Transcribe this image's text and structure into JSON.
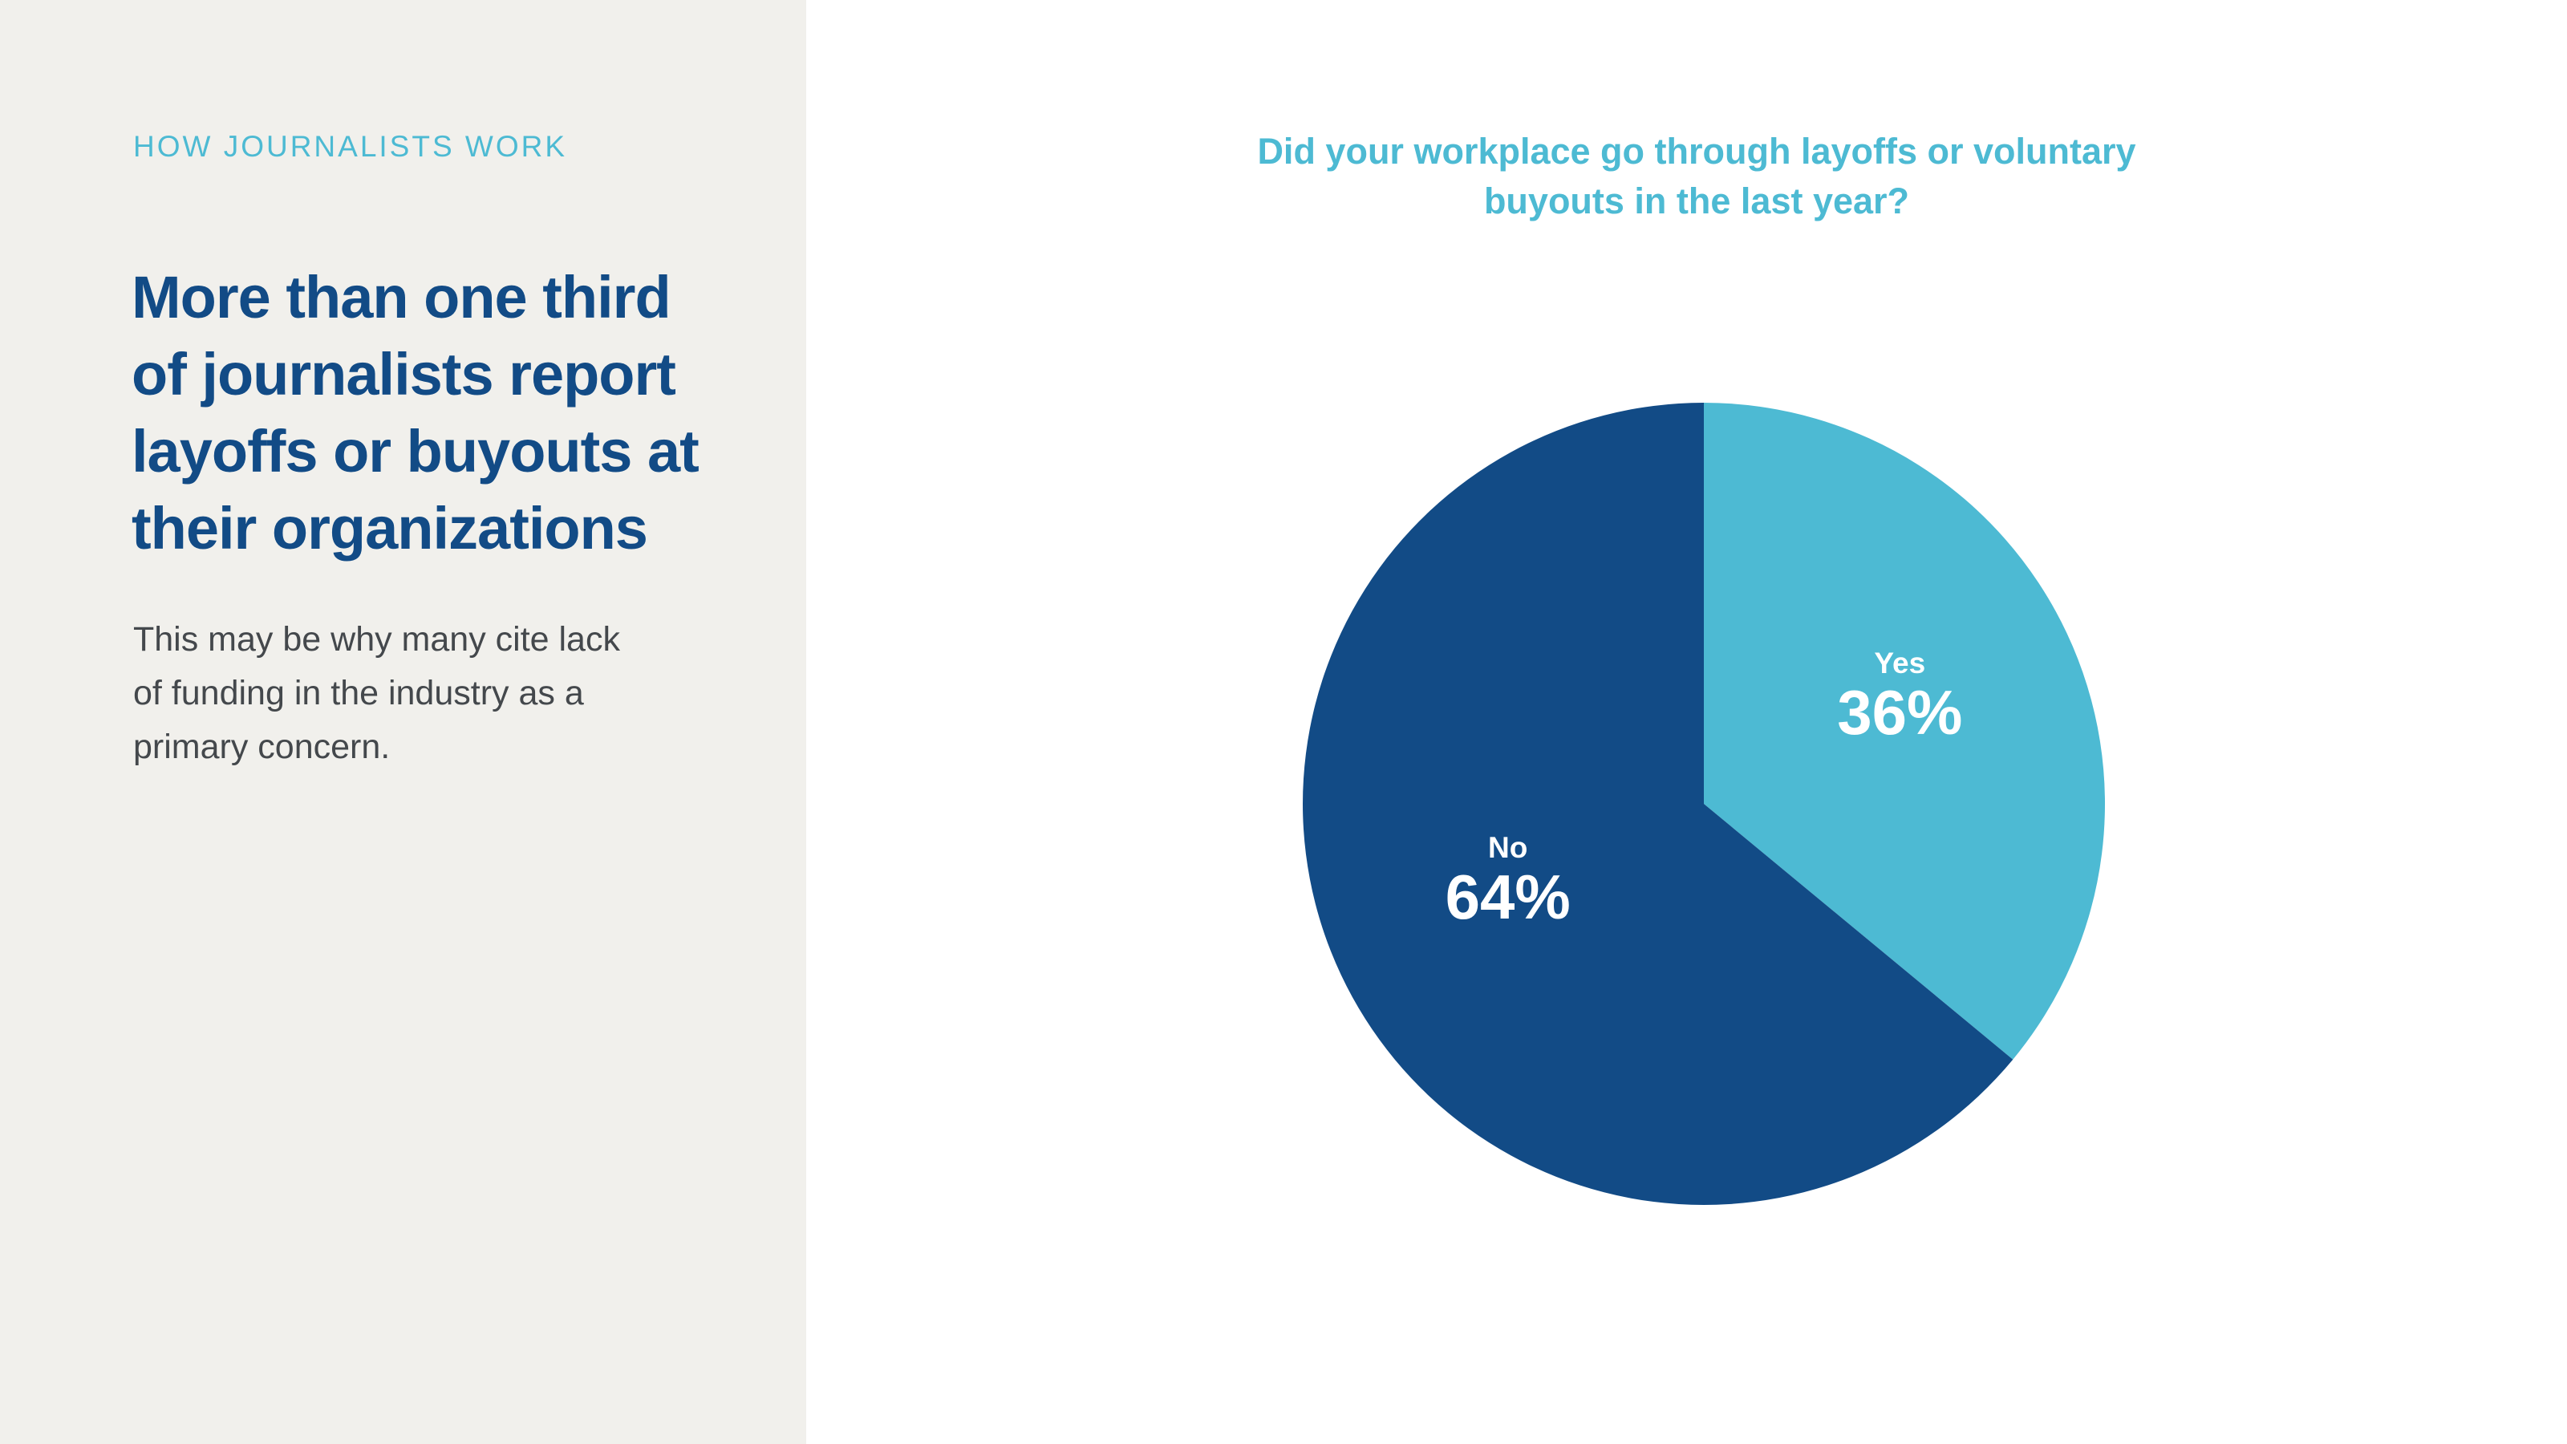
{
  "left_panel": {
    "eyebrow": "HOW JOURNALISTS WORK",
    "headline_lines": [
      "More than one third",
      "of journalists report",
      "layoffs or buyouts at",
      "their organizations"
    ],
    "body_lines": [
      "This may be why many cite lack",
      "of funding in the industry as a",
      "primary concern."
    ]
  },
  "colors": {
    "panel_background": "#f1f0ec",
    "accent": "#4dbad3",
    "navy": "#124b86",
    "body_text": "#44484c"
  },
  "chart_data": {
    "type": "pie",
    "title_lines": [
      "Did your workplace go through layoffs or voluntary",
      "buyouts in the last year?"
    ],
    "slices": [
      {
        "label": "Yes",
        "value": 36,
        "display": "36%",
        "color": "#4dbad3"
      },
      {
        "label": "No",
        "value": 64,
        "display": "64%",
        "color": "#124b86"
      }
    ],
    "start": "12 o'clock",
    "direction": "clockwise"
  }
}
